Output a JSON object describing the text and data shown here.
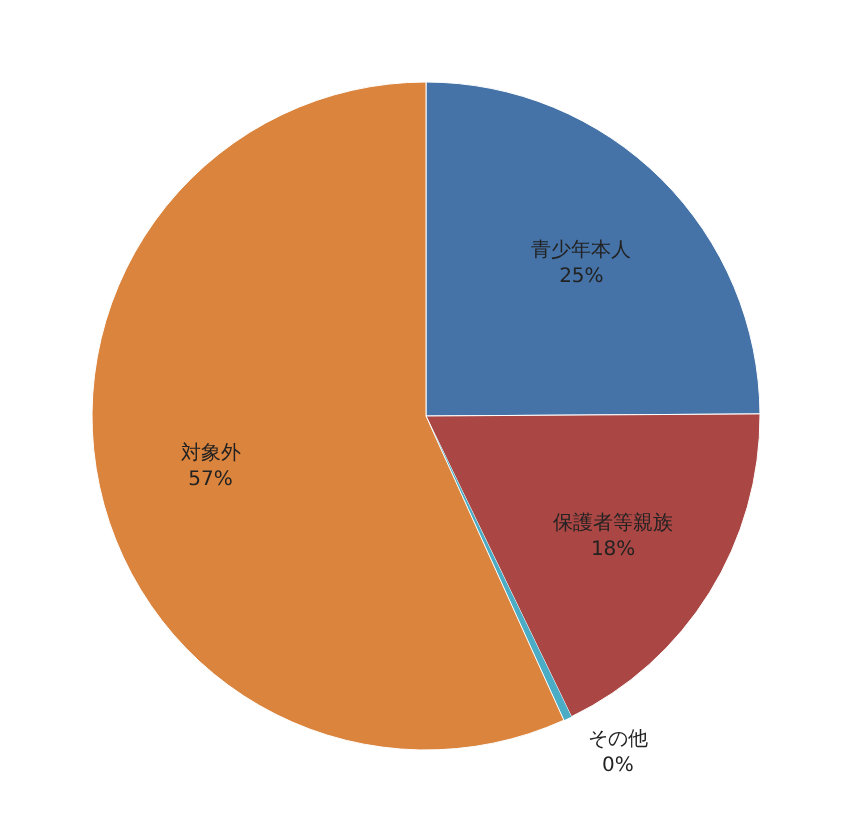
{
  "chart_data": {
    "type": "pie",
    "categories": [
      "青少年本人",
      "保護者等親族",
      "その他",
      "対象外"
    ],
    "values": [
      25,
      18,
      0.4,
      57
    ],
    "value_labels": [
      "25%",
      "18%",
      "0%",
      "57%"
    ],
    "colors": [
      "#4572a7",
      "#aa4643",
      "#4bacc6",
      "#db843d"
    ],
    "legend": false
  }
}
